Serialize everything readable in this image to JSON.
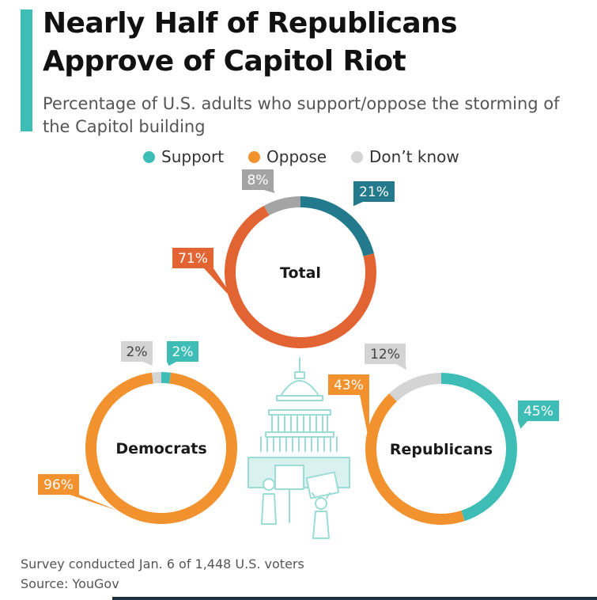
{
  "title": "Nearly Half of Republicans Approve of Capitol Riot",
  "subtitle": "Percentage of U.S. adults who support/oppose the storming of the Capitol building",
  "legend": [
    {
      "label": "Support",
      "color": "#3ebcb6"
    },
    {
      "label": "Oppose",
      "color": "#f2922e"
    },
    {
      "label": "Don’t know",
      "color": "#d4d4d4"
    }
  ],
  "chart_data": [
    {
      "type": "pie",
      "title": "Total",
      "categories": [
        "Support",
        "Oppose",
        "Don’t know"
      ],
      "values": [
        21,
        71,
        8
      ],
      "labels": [
        "21%",
        "71%",
        "8%"
      ],
      "colors": [
        "#227a8c",
        "#e26432",
        "#a4a4a4"
      ]
    },
    {
      "type": "pie",
      "title": "Democrats",
      "categories": [
        "Support",
        "Oppose",
        "Don’t know"
      ],
      "values": [
        2,
        96,
        2
      ],
      "labels": [
        "2%",
        "96%",
        "2%"
      ],
      "colors": [
        "#3ebcb6",
        "#f2922e",
        "#d4d4d4"
      ]
    },
    {
      "type": "pie",
      "title": "Republicans",
      "categories": [
        "Support",
        "Oppose",
        "Don’t know"
      ],
      "values": [
        45,
        43,
        12
      ],
      "labels": [
        "45%",
        "43%",
        "12%"
      ],
      "colors": [
        "#3ebcb6",
        "#f2922e",
        "#d4d4d4"
      ]
    }
  ],
  "footer": {
    "note": "Survey conducted Jan. 6 of 1,448 U.S. voters",
    "source": "Source: YouGov"
  }
}
